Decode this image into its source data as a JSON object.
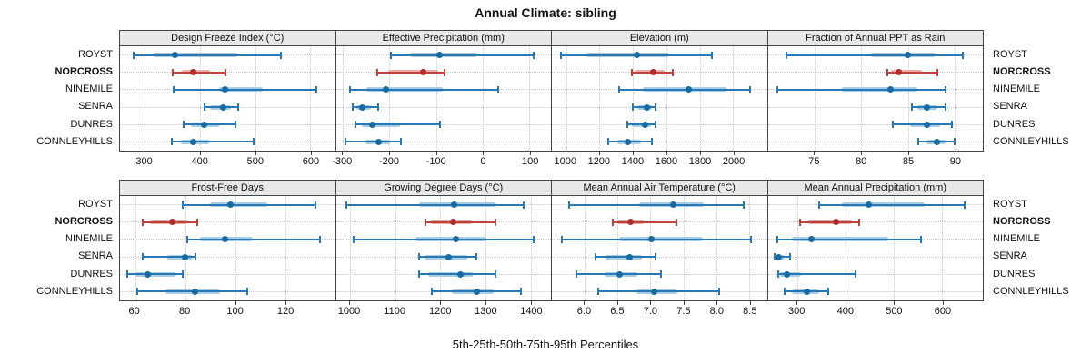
{
  "title": "Annual Climate: sibling",
  "caption": "5th-25th-50th-75th-95th Percentiles",
  "stations": [
    "ROYST",
    "NORCROSS",
    "NINEMILE",
    "SENRA",
    "DUNRES",
    "CONNLEYHILLS"
  ],
  "highlighted_station": "NORCROSS",
  "colors": {
    "normal": {
      "line": "#2878b5",
      "band": "#a9cfe6",
      "dot": "#186ba0"
    },
    "highlight": {
      "line": "#c2423b",
      "band": "#e9aca6",
      "dot": "#b02c28"
    },
    "grid": "#c9c9c9",
    "strip_bg": "#e8e8e8",
    "border": "#444444",
    "text": "#111111"
  },
  "chart_data": {
    "type": "scatter",
    "subtype": "percentile-dotplot",
    "layout": {
      "rows": 2,
      "cols": 4,
      "grid": "dotted",
      "station_labels": "both-sides"
    },
    "percentile_levels": [
      5,
      25,
      50,
      75,
      95
    ],
    "panels": [
      {
        "id": "design-freeze-index",
        "title": "Design Freeze Index (°C)",
        "axis_range": [
          255,
          645
        ],
        "ticks": [
          {
            "value": 300,
            "label": "300"
          },
          {
            "value": 400,
            "label": "400"
          },
          {
            "value": 500,
            "label": "500"
          },
          {
            "value": 600,
            "label": "600"
          }
        ],
        "series": [
          {
            "station": "ROYST",
            "percentiles": [
              279,
              316,
              354,
              467,
              547
            ]
          },
          {
            "station": "NORCROSS",
            "percentiles": [
              351,
              367,
              388,
              418,
              446
            ]
          },
          {
            "station": "NINEMILE",
            "percentiles": [
              352,
              435,
              446,
              514,
              612
            ]
          },
          {
            "station": "SENRA",
            "percentiles": [
              409,
              419,
              442,
              456,
              469
            ]
          },
          {
            "station": "DUNRES",
            "percentiles": [
              370,
              383,
              408,
              435,
              464
            ]
          },
          {
            "station": "CONNLEYHILLS",
            "percentiles": [
              349,
              365,
              388,
              416,
              497
            ]
          }
        ]
      },
      {
        "id": "effective-precipitation",
        "title": "Effective Precipitation (mm)",
        "axis_range": [
          -315,
          146
        ],
        "ticks": [
          {
            "value": -300,
            "label": "-300"
          },
          {
            "value": -200,
            "label": "-200"
          },
          {
            "value": -100,
            "label": "-100"
          },
          {
            "value": 0,
            "label": "0"
          },
          {
            "value": 100,
            "label": "100"
          }
        ],
        "series": [
          {
            "station": "ROYST",
            "percentiles": [
              -198,
              -155,
              -92,
              -13,
              109
            ]
          },
          {
            "station": "NORCROSS",
            "percentiles": [
              -226,
              -203,
              -128,
              -96,
              -82
            ]
          },
          {
            "station": "NINEMILE",
            "percentiles": [
              -284,
              -249,
              -208,
              -85,
              33
            ]
          },
          {
            "station": "SENRA",
            "percentiles": [
              -278,
              -271,
              -259,
              -240,
              -225
            ]
          },
          {
            "station": "DUNRES",
            "percentiles": [
              -273,
              -259,
              -238,
              -178,
              -91
            ]
          },
          {
            "station": "CONNLEYHILLS",
            "percentiles": [
              -295,
              -252,
              -224,
              -199,
              -176
            ]
          }
        ]
      },
      {
        "id": "elevation",
        "title": "Elevation (m)",
        "axis_range": [
          915,
          2202
        ],
        "ticks": [
          {
            "value": 1000,
            "label": "1000"
          },
          {
            "value": 1200,
            "label": "1200"
          },
          {
            "value": 1400,
            "label": "1400"
          },
          {
            "value": 1600,
            "label": "1600"
          },
          {
            "value": 1800,
            "label": "1800"
          },
          {
            "value": 2000,
            "label": "2000"
          }
        ],
        "series": [
          {
            "station": "ROYST",
            "percentiles": [
              970,
              1120,
              1422,
              1610,
              1871
            ]
          },
          {
            "station": "NORCROSS",
            "percentiles": [
              1395,
              1410,
              1521,
              1592,
              1637
            ]
          },
          {
            "station": "NINEMILE",
            "percentiles": [
              1318,
              1458,
              1736,
              1960,
              2100
            ]
          },
          {
            "station": "SENRA",
            "percentiles": [
              1400,
              1427,
              1481,
              1512,
              1533
            ]
          },
          {
            "station": "DUNRES",
            "percentiles": [
              1364,
              1395,
              1472,
              1508,
              1533
            ]
          },
          {
            "station": "CONNLEYHILLS",
            "percentiles": [
              1251,
              1305,
              1372,
              1449,
              1512
            ]
          }
        ]
      },
      {
        "id": "fraction-of-annual-ppt-as-rain",
        "title": "Fraction of Annual PPT as Rain",
        "axis_range": [
          70,
          93
        ],
        "ticks": [
          {
            "value": 75,
            "label": "75"
          },
          {
            "value": 80,
            "label": "80"
          },
          {
            "value": 85,
            "label": "85"
          },
          {
            "value": 90,
            "label": "90"
          }
        ],
        "series": [
          {
            "station": "ROYST",
            "percentiles": [
              72,
              81,
              85,
              87.8,
              90.9
            ]
          },
          {
            "station": "NORCROSS",
            "percentiles": [
              82.8,
              83.2,
              84,
              86.5,
              88.1
            ]
          },
          {
            "station": "NINEMILE",
            "percentiles": [
              71,
              77.9,
              83.1,
              86,
              89
            ]
          },
          {
            "station": "SENRA",
            "percentiles": [
              85.4,
              86,
              87,
              88.1,
              89
            ]
          },
          {
            "station": "DUNRES",
            "percentiles": [
              83.4,
              85.2,
              87,
              88.4,
              89.7
            ]
          },
          {
            "station": "CONNLEYHILLS",
            "percentiles": [
              86.1,
              87,
              88.1,
              89,
              90
            ]
          }
        ]
      },
      {
        "id": "frost-free-days",
        "title": "Frost-Free Days",
        "axis_range": [
          54,
          140
        ],
        "ticks": [
          {
            "value": 60,
            "label": "60"
          },
          {
            "value": 80,
            "label": "80"
          },
          {
            "value": 100,
            "label": "100"
          },
          {
            "value": 120,
            "label": "120"
          }
        ],
        "series": [
          {
            "station": "ROYST",
            "percentiles": [
              79,
              90,
              98,
              113,
              132
            ]
          },
          {
            "station": "NORCROSS",
            "percentiles": [
              63,
              66,
              75,
              81,
              85
            ]
          },
          {
            "station": "NINEMILE",
            "percentiles": [
              81,
              86,
              96,
              107,
              134
            ]
          },
          {
            "station": "SENRA",
            "percentiles": [
              63,
              73,
              80,
              83,
              84
            ]
          },
          {
            "station": "DUNRES",
            "percentiles": [
              57,
              60,
              65,
              76,
              79
            ]
          },
          {
            "station": "CONNLEYHILLS",
            "percentiles": [
              61,
              72,
              84,
              94,
              105
            ]
          }
        ]
      },
      {
        "id": "growing-degree-days",
        "title": "Growing Degree Days (°C)",
        "axis_range": [
          969,
          1445
        ],
        "ticks": [
          {
            "value": 1000,
            "label": "1000"
          },
          {
            "value": 1100,
            "label": "1100"
          },
          {
            "value": 1200,
            "label": "1200"
          },
          {
            "value": 1300,
            "label": "1300"
          },
          {
            "value": 1400,
            "label": "1400"
          }
        ],
        "series": [
          {
            "station": "ROYST",
            "percentiles": [
              992,
              1153,
              1231,
              1322,
              1385
            ]
          },
          {
            "station": "NORCROSS",
            "percentiles": [
              1167,
              1179,
              1228,
              1269,
              1322
            ]
          },
          {
            "station": "NINEMILE",
            "percentiles": [
              1008,
              1146,
              1234,
              1302,
              1407
            ]
          },
          {
            "station": "SENRA",
            "percentiles": [
              1153,
              1166,
              1219,
              1259,
              1279
            ]
          },
          {
            "station": "DUNRES",
            "percentiles": [
              1154,
              1173,
              1244,
              1272,
              1322
            ]
          },
          {
            "station": "CONNLEYHILLS",
            "percentiles": [
              1181,
              1226,
              1280,
              1319,
              1379
            ]
          }
        ]
      },
      {
        "id": "mean-annual-air-temperature",
        "title": "Mean Annual Air Temperature (°C)",
        "axis_range": [
          5.5,
          8.77
        ],
        "ticks": [
          {
            "value": 6.0,
            "label": "6.0"
          },
          {
            "value": 6.5,
            "label": "6.5"
          },
          {
            "value": 7.0,
            "label": "7.0"
          },
          {
            "value": 7.5,
            "label": "7.5"
          },
          {
            "value": 8.0,
            "label": "8.0"
          },
          {
            "value": 8.5,
            "label": "8.5"
          }
        ],
        "series": [
          {
            "station": "ROYST",
            "percentiles": [
              5.76,
              6.83,
              7.35,
              7.81,
              8.42
            ]
          },
          {
            "station": "NORCROSS",
            "percentiles": [
              6.42,
              6.5,
              6.69,
              6.89,
              7.4
            ]
          },
          {
            "station": "NINEMILE",
            "percentiles": [
              5.65,
              6.52,
              7.01,
              7.8,
              8.53
            ]
          },
          {
            "station": "SENRA",
            "percentiles": [
              6.16,
              6.32,
              6.68,
              6.87,
              7.08
            ]
          },
          {
            "station": "DUNRES",
            "percentiles": [
              5.88,
              6.3,
              6.53,
              6.8,
              7.16
            ]
          },
          {
            "station": "CONNLEYHILLS",
            "percentiles": [
              6.2,
              6.78,
              7.05,
              7.41,
              8.05
            ]
          }
        ]
      },
      {
        "id": "mean-annual-precipitation",
        "title": "Mean Annual Precipitation (mm)",
        "axis_range": [
          239,
          684
        ],
        "ticks": [
          {
            "value": 300,
            "label": "300"
          },
          {
            "value": 400,
            "label": "400"
          },
          {
            "value": 500,
            "label": "500"
          },
          {
            "value": 600,
            "label": "600"
          }
        ],
        "series": [
          {
            "station": "ROYST",
            "percentiles": [
              345,
              392,
              448,
              563,
              647
            ]
          },
          {
            "station": "NORCROSS",
            "percentiles": [
              306,
              323,
              380,
              413,
              429
            ]
          },
          {
            "station": "NINEMILE",
            "percentiles": [
              258,
              289,
              330,
              488,
              556
            ]
          },
          {
            "station": "SENRA",
            "percentiles": [
              253,
              256,
              262,
              274,
              286
            ]
          },
          {
            "station": "DUNRES",
            "percentiles": [
              260,
              264,
              278,
              308,
              421
            ]
          },
          {
            "station": "CONNLEYHILLS",
            "percentiles": [
              274,
              289,
              320,
              345,
              364
            ]
          }
        ]
      }
    ]
  }
}
